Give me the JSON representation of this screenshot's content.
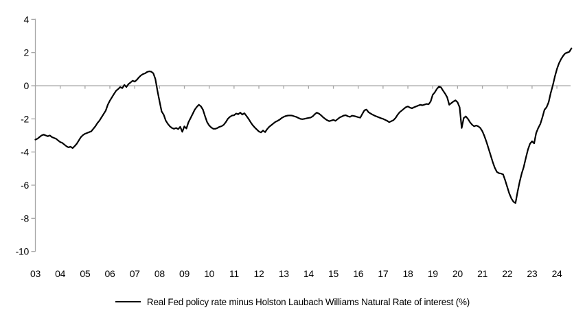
{
  "chart_data": {
    "type": "line",
    "title": "",
    "legend_position": "bottom",
    "background": "#ffffff",
    "axis_color": "#a6a6a6",
    "grid": "zero-baseline-only",
    "ylim": [
      -10,
      4
    ],
    "y_ticks": [
      4,
      2,
      0,
      -2,
      -4,
      -6,
      -8,
      -10
    ],
    "y_tick_labels": [
      "4",
      "2",
      "0",
      "-2",
      "-4",
      "-6",
      "-8",
      "-10"
    ],
    "x_start_year": 2003,
    "points_per_year": 12,
    "x_tick_labels": [
      "03",
      "04",
      "05",
      "06",
      "07",
      "08",
      "09",
      "10",
      "11",
      "12",
      "13",
      "14",
      "15",
      "16",
      "17",
      "18",
      "19",
      "20",
      "21",
      "22",
      "23",
      "24"
    ],
    "series": [
      {
        "name": "Real Fed policy rate minus Holston Laubach Williams Natural Rate of interest (%)",
        "color": "#000000",
        "values": [
          -3.25,
          -3.2,
          -3.1,
          -3.0,
          -2.95,
          -3.0,
          -3.05,
          -3.0,
          -3.1,
          -3.15,
          -3.2,
          -3.3,
          -3.4,
          -3.45,
          -3.55,
          -3.65,
          -3.72,
          -3.68,
          -3.76,
          -3.64,
          -3.5,
          -3.3,
          -3.1,
          -2.98,
          -2.9,
          -2.85,
          -2.8,
          -2.75,
          -2.6,
          -2.45,
          -2.25,
          -2.1,
          -1.9,
          -1.7,
          -1.5,
          -1.15,
          -0.9,
          -0.7,
          -0.5,
          -0.3,
          -0.2,
          -0.08,
          -0.15,
          0.05,
          -0.08,
          0.1,
          0.2,
          0.3,
          0.25,
          0.35,
          0.5,
          0.62,
          0.7,
          0.75,
          0.83,
          0.87,
          0.85,
          0.75,
          0.4,
          -0.3,
          -0.95,
          -1.55,
          -1.75,
          -2.1,
          -2.3,
          -2.45,
          -2.55,
          -2.6,
          -2.55,
          -2.62,
          -2.48,
          -2.78,
          -2.45,
          -2.58,
          -2.2,
          -1.95,
          -1.7,
          -1.45,
          -1.28,
          -1.15,
          -1.24,
          -1.45,
          -1.85,
          -2.2,
          -2.4,
          -2.52,
          -2.6,
          -2.6,
          -2.55,
          -2.48,
          -2.44,
          -2.36,
          -2.2,
          -2.0,
          -1.88,
          -1.8,
          -1.78,
          -1.68,
          -1.72,
          -1.62,
          -1.74,
          -1.66,
          -1.82,
          -2.0,
          -2.2,
          -2.38,
          -2.52,
          -2.64,
          -2.76,
          -2.82,
          -2.7,
          -2.8,
          -2.62,
          -2.48,
          -2.38,
          -2.28,
          -2.18,
          -2.12,
          -2.05,
          -1.95,
          -1.88,
          -1.83,
          -1.8,
          -1.79,
          -1.8,
          -1.84,
          -1.88,
          -1.94,
          -2.0,
          -2.02,
          -2.0,
          -1.97,
          -1.94,
          -1.92,
          -1.85,
          -1.72,
          -1.62,
          -1.68,
          -1.78,
          -1.9,
          -2.0,
          -2.08,
          -2.14,
          -2.1,
          -2.06,
          -2.12,
          -2.02,
          -1.92,
          -1.86,
          -1.8,
          -1.78,
          -1.84,
          -1.88,
          -1.81,
          -1.83,
          -1.86,
          -1.9,
          -1.93,
          -1.7,
          -1.48,
          -1.44,
          -1.6,
          -1.68,
          -1.75,
          -1.81,
          -1.86,
          -1.91,
          -1.96,
          -2.0,
          -2.06,
          -2.12,
          -2.2,
          -2.14,
          -2.08,
          -1.95,
          -1.76,
          -1.6,
          -1.5,
          -1.4,
          -1.3,
          -1.25,
          -1.32,
          -1.36,
          -1.3,
          -1.25,
          -1.2,
          -1.15,
          -1.18,
          -1.14,
          -1.1,
          -1.12,
          -0.95,
          -0.55,
          -0.4,
          -0.2,
          -0.05,
          -0.1,
          -0.3,
          -0.48,
          -0.7,
          -1.15,
          -1.05,
          -0.95,
          -0.88,
          -1.0,
          -1.3,
          -2.55,
          -1.95,
          -1.85,
          -2.0,
          -2.2,
          -2.35,
          -2.45,
          -2.4,
          -2.45,
          -2.55,
          -2.75,
          -3.05,
          -3.4,
          -3.8,
          -4.2,
          -4.6,
          -4.95,
          -5.2,
          -5.28,
          -5.3,
          -5.35,
          -5.7,
          -6.1,
          -6.5,
          -6.8,
          -7.0,
          -7.08,
          -6.4,
          -5.8,
          -5.3,
          -4.9,
          -4.35,
          -3.85,
          -3.5,
          -3.35,
          -3.48,
          -2.85,
          -2.55,
          -2.3,
          -1.9,
          -1.45,
          -1.3,
          -1.0,
          -0.45,
          0.0,
          0.55,
          1.0,
          1.35,
          1.6,
          1.8,
          1.95,
          2.0,
          2.05,
          2.25
        ]
      }
    ]
  }
}
